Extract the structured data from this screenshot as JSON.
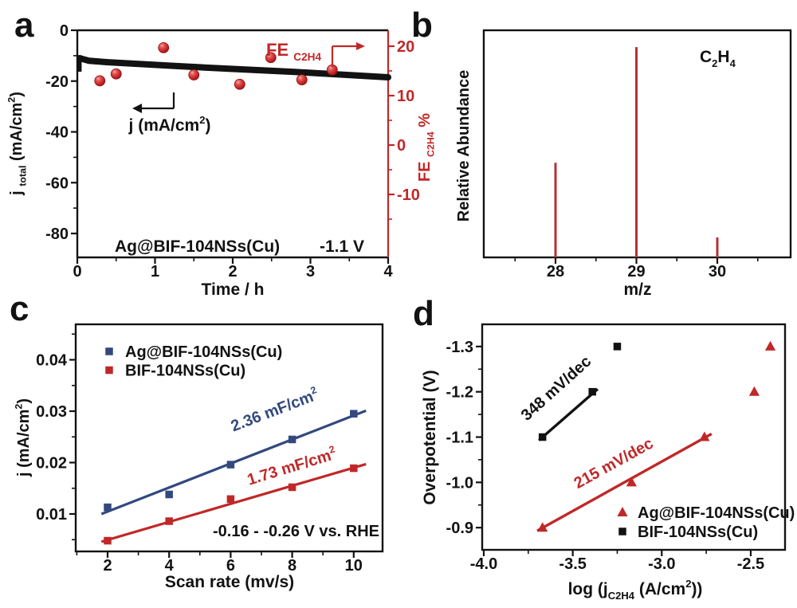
{
  "figure": {
    "panel_letters": [
      "a",
      "b",
      "c",
      "d"
    ],
    "colors": {
      "black": "#121212",
      "red": "#c02828",
      "bar_red": "#b23333",
      "blue": "#33497e",
      "background": "#ffffff"
    }
  },
  "chart_data": [
    {
      "panel": "a",
      "type": "line",
      "xlabel": "Time / h",
      "ylabel_left_parts": [
        {
          "t": "j "
        },
        {
          "t": "total",
          "s": "sub"
        },
        {
          "t": " (mA/cm"
        },
        {
          "t": "2",
          "s": "sup"
        },
        {
          "t": ")"
        }
      ],
      "ylabel_right_parts": [
        {
          "t": "FE "
        },
        {
          "t": "C2H4",
          "s": "sub"
        },
        {
          "t": " %"
        }
      ],
      "xlim": [
        0,
        4
      ],
      "ylim_left": [
        -89.4,
        0
      ],
      "ylim_right": [
        -22.7,
        23.2
      ],
      "x_ticks": [
        {
          "v": 0,
          "l": "0"
        },
        {
          "v": 1,
          "l": "1"
        },
        {
          "v": 2,
          "l": "2"
        },
        {
          "v": 3,
          "l": "3"
        },
        {
          "v": 4,
          "l": "4"
        }
      ],
      "x_minor": [
        0.5,
        1.5,
        2.5,
        3.5
      ],
      "y_left_ticks": [
        {
          "v": 0,
          "l": "0"
        },
        {
          "v": -20,
          "l": "-20"
        },
        {
          "v": -40,
          "l": "-40"
        },
        {
          "v": -60,
          "l": "-60"
        },
        {
          "v": -80,
          "l": "-80"
        }
      ],
      "y_left_minor": [
        -10,
        -30,
        -50,
        -70
      ],
      "y_right_ticks": [
        {
          "v": 20,
          "l": "20"
        },
        {
          "v": 10,
          "l": "10"
        },
        {
          "v": 0,
          "l": "0"
        },
        {
          "v": -10,
          "l": "-10"
        }
      ],
      "y_right_minor": [
        15,
        5,
        -5,
        -15
      ],
      "series": [
        {
          "name": "j_total",
          "axis": "left",
          "style": "thick-band",
          "color": "#121212",
          "points": [
            [
              0.03,
              -11.0
            ],
            [
              0.15,
              -12.0
            ],
            [
              0.4,
              -12.6
            ],
            [
              0.7,
              -13.1
            ],
            [
              1.0,
              -13.6
            ],
            [
              1.3,
              -14.1
            ],
            [
              1.6,
              -14.6
            ],
            [
              2.0,
              -15.2
            ],
            [
              2.4,
              -15.8
            ],
            [
              2.8,
              -16.4
            ],
            [
              3.2,
              -17.1
            ],
            [
              3.6,
              -17.8
            ],
            [
              4.0,
              -18.5
            ]
          ],
          "start_spike": [
            [
              0.03,
              -9.8
            ],
            [
              0.03,
              -16.3
            ]
          ]
        },
        {
          "name": "FE_C2H4",
          "axis": "right",
          "style": "ball-scatter",
          "color": "#c02828",
          "points": [
            [
              0.29,
              13.0
            ],
            [
              0.5,
              14.4
            ],
            [
              1.11,
              19.7
            ],
            [
              1.5,
              14.2
            ],
            [
              2.09,
              12.3
            ],
            [
              2.49,
              17.7
            ],
            [
              2.89,
              13.2
            ],
            [
              3.28,
              15.2
            ]
          ]
        }
      ],
      "annotations": {
        "j_axis_parts": [
          {
            "t": "j (mA/cm"
          },
          {
            "t": "2",
            "s": "sup"
          },
          {
            "t": ")"
          }
        ],
        "fe_axis_parts": [
          {
            "t": "FE "
          },
          {
            "t": "C2H4",
            "s": "sub"
          }
        ],
        "catalyst": "Ag@BIF-104NSs(Cu)",
        "potential": "-1.1 V"
      }
    },
    {
      "panel": "b",
      "type": "bar",
      "xlabel": "m/z",
      "ylabel": "Relative Abundance",
      "xlim": [
        27.1,
        30.9
      ],
      "ylim": [
        0,
        108
      ],
      "categories": [
        28,
        29,
        30
      ],
      "values": [
        45,
        100,
        9.5
      ],
      "x_ticks": [
        {
          "v": 28,
          "l": "28"
        },
        {
          "v": 29,
          "l": "29"
        },
        {
          "v": 30,
          "l": "30"
        }
      ],
      "x_minor": [
        27.5,
        28.5,
        29.5,
        30.5
      ],
      "annotation_parts": [
        {
          "t": "C"
        },
        {
          "t": "2",
          "s": "sub"
        },
        {
          "t": "H"
        },
        {
          "t": "4",
          "s": "sub"
        }
      ]
    },
    {
      "panel": "c",
      "type": "scatter",
      "xlabel": "Scan rate (mv/s)",
      "ylabel_parts": [
        {
          "t": "j (mA/cm"
        },
        {
          "t": "2",
          "s": "sup"
        },
        {
          "t": ")"
        }
      ],
      "xlim": [
        0.96,
        10.94
      ],
      "ylim": [
        0.0026,
        0.0468
      ],
      "x_ticks": [
        {
          "v": 2,
          "l": "2"
        },
        {
          "v": 4,
          "l": "4"
        },
        {
          "v": 6,
          "l": "6"
        },
        {
          "v": 8,
          "l": "8"
        },
        {
          "v": 10,
          "l": "10"
        }
      ],
      "x_minor": [
        1,
        3,
        5,
        7,
        9
      ],
      "y_ticks": [
        {
          "v": 0.04,
          "l": "0.04"
        },
        {
          "v": 0.03,
          "l": "0.03"
        },
        {
          "v": 0.02,
          "l": "0.02"
        },
        {
          "v": 0.01,
          "l": "0.01"
        }
      ],
      "y_minor": [
        0.005,
        0.015,
        0.025,
        0.035,
        0.045
      ],
      "series": [
        {
          "name": "Ag@BIF-104NSs(Cu)",
          "color": "#33497e",
          "marker": "square",
          "points": [
            [
              2,
              0.0113
            ],
            [
              4,
              0.0138
            ],
            [
              6,
              0.0196
            ],
            [
              8,
              0.0245
            ],
            [
              10,
              0.0295
            ]
          ],
          "fit_line": [
            [
              1.8,
              0.01
            ],
            [
              10.4,
              0.0301
            ]
          ],
          "slope_label_parts": [
            {
              "t": "2.36 mF/cm"
            },
            {
              "t": "2",
              "s": "sup"
            }
          ]
        },
        {
          "name": "BIF-104NSs(Cu)",
          "color": "#c02828",
          "marker": "square",
          "points": [
            [
              2,
              0.0048
            ],
            [
              4,
              0.0086
            ],
            [
              6,
              0.0129
            ],
            [
              8,
              0.0152
            ],
            [
              10,
              0.0189
            ]
          ],
          "fit_line": [
            [
              1.8,
              0.0046
            ],
            [
              10.4,
              0.0197
            ]
          ],
          "slope_label_parts": [
            {
              "t": "1.73 mF/cm"
            },
            {
              "t": "2",
              "s": "sup"
            }
          ]
        }
      ],
      "note": "-0.16 - -0.26 V vs. RHE"
    },
    {
      "panel": "d",
      "type": "scatter",
      "xlabel_parts": [
        {
          "t": "log (j"
        },
        {
          "t": "C2H4",
          "s": "sub"
        },
        {
          "t": " (A/cm"
        },
        {
          "t": "2",
          "s": "sup"
        },
        {
          "t": "))"
        }
      ],
      "ylabel": "Overpotential (V)",
      "xlim": [
        -4.01,
        -2.31
      ],
      "ylim": [
        -1.349,
        -0.851
      ],
      "y_axis_inverted": true,
      "x_ticks": [
        {
          "v": -4.0,
          "l": "-4.0"
        },
        {
          "v": -3.5,
          "l": "-3.5"
        },
        {
          "v": -3.0,
          "l": "-3.0"
        },
        {
          "v": -2.5,
          "l": "-2.5"
        }
      ],
      "x_minor": [
        -3.75,
        -3.25,
        -2.75
      ],
      "y_ticks": [
        {
          "v": -1.3,
          "l": "-1.3"
        },
        {
          "v": -1.2,
          "l": "-1.2"
        },
        {
          "v": -1.1,
          "l": "-1.1"
        },
        {
          "v": -1.0,
          "l": "-1.0"
        },
        {
          "v": -0.9,
          "l": "-0.9"
        }
      ],
      "y_minor": [
        -1.25,
        -1.15,
        -1.05,
        -0.95
      ],
      "series": [
        {
          "name": "Ag@BIF-104NSs(Cu)",
          "color": "#c02828",
          "marker": "triangle",
          "points": [
            [
              -3.67,
              -0.9
            ],
            [
              -3.17,
              -1.0
            ],
            [
              -2.76,
              -1.1
            ],
            [
              -2.48,
              -1.2
            ],
            [
              -2.39,
              -1.3
            ]
          ],
          "fit_line": [
            [
              -3.7,
              -0.893
            ],
            [
              -2.72,
              -1.107
            ]
          ],
          "slope_label": "215 mV/dec"
        },
        {
          "name": "BIF-104NSs(Cu)",
          "color": "#121212",
          "marker": "square",
          "points": [
            [
              -3.67,
              -1.1
            ],
            [
              -3.39,
              -1.2
            ],
            [
              -3.25,
              -1.3
            ]
          ],
          "fit_line": [
            [
              -3.69,
              -1.093
            ],
            [
              -3.36,
              -1.206
            ]
          ],
          "slope_label": "348 mV/dec"
        }
      ]
    }
  ]
}
